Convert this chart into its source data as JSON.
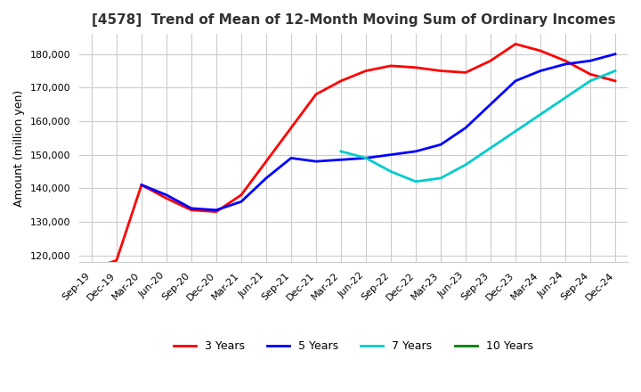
{
  "title": "[4578]  Trend of Mean of 12-Month Moving Sum of Ordinary Incomes",
  "ylabel": "Amount (million yen)",
  "ylim": [
    118000,
    186000
  ],
  "yticks": [
    120000,
    130000,
    140000,
    150000,
    160000,
    170000,
    180000
  ],
  "background_color": "#ffffff",
  "grid_color": "#cccccc",
  "legend": [
    "3 Years",
    "5 Years",
    "7 Years",
    "10 Years"
  ],
  "line_colors": [
    "#ff0000",
    "#0000ff",
    "#00cccc",
    "#008000"
  ],
  "x_labels": [
    "Sep-19",
    "Dec-19",
    "Mar-20",
    "Jun-20",
    "Sep-20",
    "Dec-20",
    "Mar-21",
    "Jun-21",
    "Sep-21",
    "Dec-21",
    "Mar-22",
    "Jun-22",
    "Sep-22",
    "Dec-22",
    "Mar-23",
    "Jun-23",
    "Sep-23",
    "Dec-23",
    "Mar-24",
    "Jun-24",
    "Sep-24",
    "Dec-24"
  ],
  "series_3yr": [
    116000,
    118500,
    141000,
    137000,
    133500,
    133000,
    138000,
    148000,
    158000,
    168000,
    172000,
    175000,
    176500,
    176000,
    175000,
    174500,
    178000,
    183000,
    181000,
    178000,
    174000,
    172000
  ],
  "series_5yr": [
    null,
    null,
    141000,
    138000,
    134000,
    133500,
    136000,
    143000,
    149000,
    148000,
    148500,
    149000,
    150000,
    151000,
    153000,
    158000,
    165000,
    172000,
    175000,
    177000,
    178000,
    180000
  ],
  "series_7yr": [
    null,
    null,
    null,
    null,
    null,
    null,
    null,
    null,
    null,
    null,
    151000,
    149000,
    145000,
    142000,
    143000,
    147000,
    152000,
    157000,
    162000,
    167000,
    172000,
    175000
  ],
  "series_10yr": [
    null,
    null,
    null,
    null,
    null,
    null,
    null,
    null,
    null,
    null,
    null,
    null,
    null,
    null,
    null,
    null,
    null,
    null,
    null,
    null,
    null,
    null
  ]
}
